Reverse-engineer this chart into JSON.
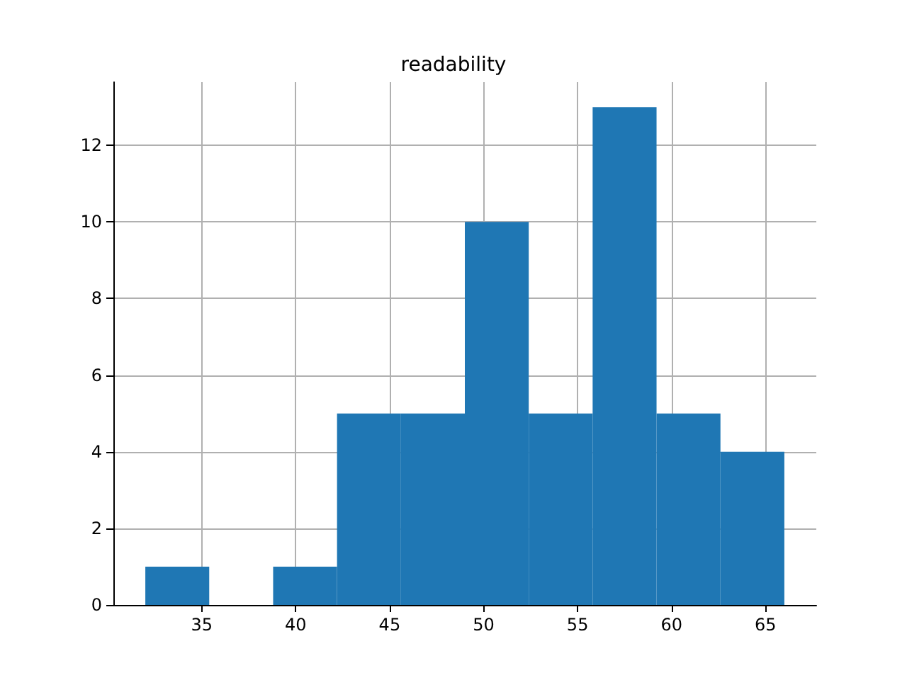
{
  "chart_data": {
    "type": "histogram",
    "title": "readability",
    "bins": [
      32,
      35.4,
      38.8,
      42.2,
      45.6,
      49,
      52.4,
      55.8,
      59.2,
      62.6,
      66
    ],
    "values": [
      1,
      0,
      1,
      5,
      5,
      10,
      5,
      13,
      5,
      4
    ],
    "color": "#1f77b4",
    "xlim": [
      30.3,
      67.7
    ],
    "xticks": [
      35,
      40,
      45,
      50,
      55,
      60,
      65
    ],
    "ylim": [
      0,
      13.65
    ],
    "yticks": [
      0,
      2,
      4,
      6,
      8,
      10,
      12
    ],
    "grid": true
  }
}
